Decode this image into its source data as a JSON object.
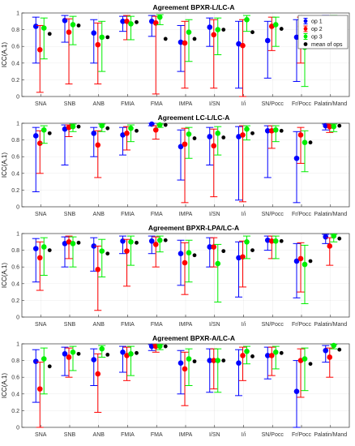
{
  "chart_data": [
    {
      "type": "scatter",
      "title": "Agreement BPXR-L/LC-A",
      "ylabel": "ICC(A,1)",
      "ylim": [
        0,
        1
      ],
      "yticks": [
        "0",
        "0.2",
        "0.4",
        "0.6",
        "0.8",
        "1"
      ],
      "categories": [
        "SNA",
        "SNB",
        "ANB",
        "FMIA",
        "FMA",
        "IMPA",
        "I/SN",
        "I/i",
        "SN/Pocc",
        "Fr/Pocc",
        "Palatin/Mand"
      ],
      "grid": true,
      "legend": {
        "placement": "top-right",
        "entries": [
          "op 1",
          "op 2",
          "op 3",
          "mean of ops"
        ]
      },
      "series": [
        {
          "name": "op 1",
          "color": "#0000ff",
          "values": [
            0.84,
            0.91,
            0.76,
            0.9,
            0.9,
            0.65,
            0.83,
            0.63,
            0.67,
            0.71,
            0.91
          ],
          "lower": [
            0.4,
            0.65,
            0.4,
            0.78,
            0.72,
            0.3,
            0.6,
            0.1,
            0.22,
            0.18,
            0.8
          ],
          "upper": [
            0.95,
            0.97,
            0.92,
            0.96,
            0.97,
            0.85,
            0.94,
            0.9,
            0.9,
            0.92,
            0.97
          ]
        },
        {
          "name": "op 2",
          "color": "#ff0000",
          "values": [
            0.56,
            0.77,
            0.62,
            0.9,
            0.88,
            0.64,
            0.74,
            0.61,
            0.84,
            0.84,
            0.89
          ],
          "lower": [
            0.05,
            0.15,
            0.15,
            0.68,
            0.03,
            0.1,
            0.1,
            0.0,
            0.55,
            0.4,
            0.68
          ],
          "upper": [
            0.85,
            0.93,
            0.88,
            0.97,
            0.96,
            0.9,
            0.92,
            0.92,
            0.95,
            0.95,
            0.96
          ]
        },
        {
          "name": "op 3",
          "color": "#00ee00",
          "values": [
            0.82,
            0.86,
            0.71,
            0.87,
            0.95,
            0.77,
            0.8,
            0.92,
            0.86,
            0.59,
            0.91
          ],
          "lower": [
            0.45,
            0.62,
            0.3,
            0.68,
            0.86,
            0.42,
            0.5,
            0.78,
            0.6,
            0.12,
            0.7
          ],
          "upper": [
            0.94,
            0.96,
            0.9,
            0.96,
            0.98,
            0.92,
            0.94,
            0.97,
            0.95,
            0.86,
            0.97
          ]
        },
        {
          "name": "mean of ops",
          "color": "#000000",
          "values": [
            0.75,
            0.85,
            0.71,
            0.89,
            0.69,
            0.69,
            0.8,
            0.77,
            0.81,
            0.73,
            0.9
          ]
        }
      ]
    },
    {
      "type": "scatter",
      "title": "Agreement LC-L/LC-A",
      "ylabel": "ICC(A,1)",
      "ylim": [
        0,
        1
      ],
      "yticks": [
        "0",
        "0.2",
        "0.4",
        "0.6",
        "0.8",
        "1"
      ],
      "categories": [
        "SNA",
        "SNB",
        "ANB",
        "FMIA",
        "FMA",
        "IMPA",
        "I/SN",
        "I/i",
        "SN/Pocc",
        "Fr/Pocc",
        "Palatin/Mand"
      ],
      "grid": true,
      "series": [
        {
          "name": "op 1",
          "color": "#0000ff",
          "values": [
            0.85,
            0.93,
            0.88,
            0.86,
            0.99,
            0.72,
            0.84,
            0.84,
            0.91,
            0.58,
            0.97
          ],
          "lower": [
            0.18,
            0.5,
            0.6,
            0.62,
            0.97,
            0.32,
            0.5,
            0.08,
            0.35,
            0.05,
            0.92
          ],
          "upper": [
            0.95,
            0.98,
            0.95,
            0.95,
            1.0,
            0.92,
            0.95,
            0.96,
            0.97,
            0.9,
            0.99
          ]
        },
        {
          "name": "op 2",
          "color": "#ff0000",
          "values": [
            0.76,
            0.95,
            0.74,
            0.88,
            0.92,
            0.75,
            0.73,
            0.86,
            0.91,
            0.86,
            0.96
          ],
          "lower": [
            0.4,
            0.84,
            0.35,
            0.68,
            0.81,
            0.05,
            0.12,
            0.06,
            0.7,
            0.52,
            0.89
          ],
          "upper": [
            0.91,
            0.98,
            0.91,
            0.96,
            0.97,
            0.94,
            0.93,
            0.97,
            0.97,
            0.95,
            0.99
          ]
        },
        {
          "name": "op 3",
          "color": "#00ee00",
          "values": [
            0.92,
            0.96,
            0.97,
            0.94,
            0.98,
            0.87,
            0.88,
            0.93,
            0.92,
            0.77,
            0.96
          ],
          "lower": [
            0.76,
            0.9,
            0.9,
            0.78,
            0.95,
            0.58,
            0.62,
            0.8,
            0.78,
            0.42,
            0.9
          ],
          "upper": [
            0.97,
            0.99,
            0.99,
            0.98,
            0.99,
            0.95,
            0.96,
            0.97,
            0.97,
            0.91,
            0.99
          ]
        },
        {
          "name": "mean of ops",
          "color": "#000000",
          "values": [
            0.88,
            0.96,
            0.94,
            0.91,
            0.98,
            0.82,
            0.83,
            0.88,
            0.91,
            0.77,
            0.97
          ]
        }
      ]
    },
    {
      "type": "scatter",
      "title": "Agreement BPXR-LPA/LC-A",
      "ylabel": "ICC(A,1)",
      "ylim": [
        0,
        1
      ],
      "yticks": [
        "0",
        "0.2",
        "0.4",
        "0.6",
        "0.8",
        "1"
      ],
      "categories": [
        "SNA",
        "SNB",
        "ANB",
        "FMIA",
        "FMA",
        "IMPA",
        "I/SN",
        "I/i",
        "SN/Pocc",
        "Fr/Pocc",
        "Palatin/Mand"
      ],
      "grid": true,
      "series": [
        {
          "name": "op 1",
          "color": "#0000ff",
          "values": [
            0.82,
            0.88,
            0.85,
            0.91,
            0.91,
            0.76,
            0.84,
            0.71,
            0.92,
            0.67,
            0.96
          ],
          "lower": [
            0.42,
            0.6,
            0.55,
            0.76,
            0.76,
            0.38,
            0.6,
            0.24,
            0.8,
            0.23,
            0.88
          ],
          "upper": [
            0.94,
            0.96,
            0.95,
            0.97,
            0.97,
            0.92,
            0.95,
            0.9,
            0.97,
            0.88,
            0.99
          ]
        },
        {
          "name": "op 2",
          "color": "#ff0000",
          "values": [
            0.71,
            0.9,
            0.57,
            0.79,
            0.87,
            0.65,
            0.84,
            0.72,
            0.91,
            0.7,
            0.85
          ],
          "lower": [
            0.32,
            0.7,
            0.08,
            0.37,
            0.6,
            0.27,
            0.6,
            0.36,
            0.7,
            0.3,
            0.62
          ],
          "upper": [
            0.9,
            0.97,
            0.85,
            0.93,
            0.96,
            0.89,
            0.95,
            0.91,
            0.97,
            0.89,
            0.95
          ]
        },
        {
          "name": "op 3",
          "color": "#00ee00",
          "values": [
            0.84,
            0.88,
            0.79,
            0.9,
            0.92,
            0.77,
            0.64,
            0.9,
            0.91,
            0.63,
            0.97
          ],
          "lower": [
            0.5,
            0.6,
            0.48,
            0.62,
            0.78,
            0.42,
            0.18,
            0.7,
            0.7,
            0.16,
            0.9
          ],
          "upper": [
            0.95,
            0.96,
            0.93,
            0.97,
            0.97,
            0.92,
            0.87,
            0.97,
            0.97,
            0.86,
            0.99
          ]
        },
        {
          "name": "mean of ops",
          "color": "#000000",
          "values": [
            0.8,
            0.89,
            0.76,
            0.89,
            0.92,
            0.74,
            0.79,
            0.8,
            0.91,
            0.67,
            0.94
          ]
        }
      ]
    },
    {
      "type": "scatter",
      "title": "Agreement BPXR-A/LC-A",
      "ylabel": "ICC(A,1)",
      "ylim": [
        0,
        1
      ],
      "yticks": [
        "0",
        "0.2",
        "0.4",
        "0.6",
        "0.8",
        "1"
      ],
      "categories": [
        "SNA",
        "SNB",
        "ANB",
        "FMIA",
        "FMA",
        "IMPA",
        "I/SN",
        "I/i",
        "SN/Pocc",
        "Fr/Pocc",
        "Palatin/Mand"
      ],
      "grid": true,
      "series": [
        {
          "name": "op 1",
          "color": "#0000ff",
          "values": [
            0.79,
            0.88,
            0.81,
            0.9,
            0.97,
            0.77,
            0.8,
            0.77,
            0.86,
            0.43,
            0.92
          ],
          "lower": [
            0.3,
            0.62,
            0.5,
            0.66,
            0.92,
            0.4,
            0.42,
            0.38,
            0.58,
            0.0,
            0.78
          ],
          "upper": [
            0.93,
            0.96,
            0.94,
            0.97,
            0.99,
            0.92,
            0.94,
            0.93,
            0.96,
            0.8,
            0.98
          ]
        },
        {
          "name": "op 2",
          "color": "#ff0000",
          "values": [
            0.46,
            0.84,
            0.64,
            0.86,
            0.97,
            0.7,
            0.8,
            0.86,
            0.86,
            0.8,
            0.84
          ],
          "lower": [
            0.0,
            0.6,
            0.18,
            0.56,
            0.9,
            0.26,
            0.46,
            0.56,
            0.62,
            0.36,
            0.6
          ],
          "upper": [
            0.78,
            0.95,
            0.88,
            0.96,
            0.99,
            0.9,
            0.94,
            0.96,
            0.96,
            0.94,
            0.95
          ]
        },
        {
          "name": "op 3",
          "color": "#00ee00",
          "values": [
            0.82,
            0.9,
            0.94,
            0.88,
            0.97,
            0.82,
            0.8,
            0.91,
            0.9,
            0.82,
            0.98
          ],
          "lower": [
            0.4,
            0.68,
            0.84,
            0.62,
            0.93,
            0.5,
            0.42,
            0.76,
            0.7,
            0.44,
            0.94
          ],
          "upper": [
            0.95,
            0.97,
            0.98,
            0.97,
            0.99,
            0.94,
            0.94,
            0.97,
            0.97,
            0.95,
            0.99
          ]
        },
        {
          "name": "mean of ops",
          "color": "#000000",
          "values": [
            0.73,
            0.88,
            0.87,
            0.89,
            0.97,
            0.79,
            0.8,
            0.85,
            0.89,
            0.76,
            0.93
          ]
        }
      ]
    }
  ]
}
